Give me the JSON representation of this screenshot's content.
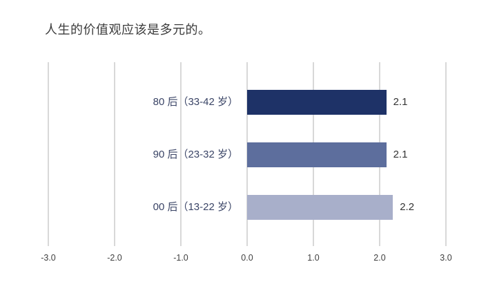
{
  "page": {
    "background_color": "#ffffff"
  },
  "chart_data": {
    "type": "bar",
    "orientation": "horizontal",
    "title": "人生的价值观应该是多元的。",
    "categories": [
      "80 后（33-42 岁）",
      "90 后（23-32 岁）",
      "00 后（13-22 岁）"
    ],
    "values": [
      2.1,
      2.1,
      2.2
    ],
    "value_labels": [
      "2.1",
      "2.1",
      "2.2"
    ],
    "series": [
      {
        "name": "80 后（33-42 岁）",
        "value": 2.1,
        "color": "#1e3267"
      },
      {
        "name": "90 后（23-32 岁）",
        "value": 2.1,
        "color": "#5d6e9d"
      },
      {
        "name": "00 后（13-22 岁）",
        "value": 2.2,
        "color": "#a8afca"
      }
    ],
    "bar_colors": [
      "#1e3267",
      "#5d6e9d",
      "#a8afca"
    ],
    "xlim": [
      -3.0,
      3.0
    ],
    "x_ticks": [
      -3.0,
      -2.0,
      -1.0,
      0.0,
      1.0,
      2.0,
      3.0
    ],
    "x_tick_labels": [
      "-3.0",
      "-2.0",
      "-1.0",
      "0.0",
      "1.0",
      "2.0",
      "3.0"
    ],
    "grid": "vertical-gridlines-on",
    "legend": "none",
    "colors": {
      "gridline": "#d8d8d8",
      "title_text": "#3b3b3b",
      "category_text": "#3a4466",
      "value_text": "#333333",
      "tick_text": "#3f3f3f"
    }
  }
}
